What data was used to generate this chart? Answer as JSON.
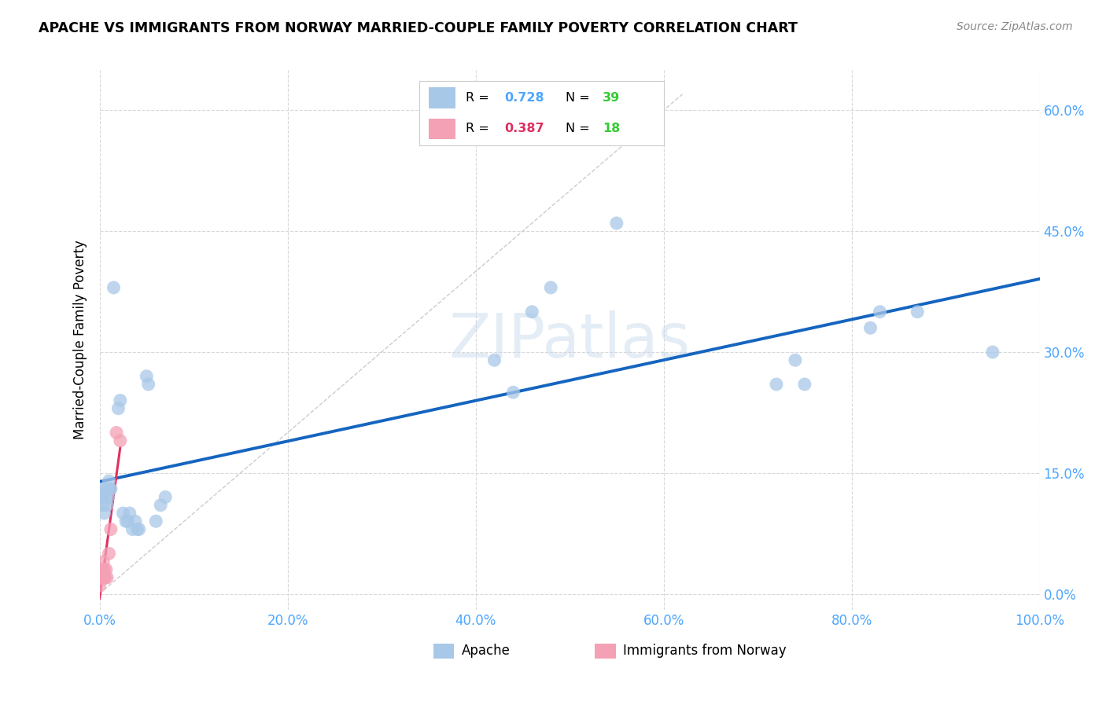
{
  "title": "APACHE VS IMMIGRANTS FROM NORWAY MARRIED-COUPLE FAMILY POVERTY CORRELATION CHART",
  "source": "Source: ZipAtlas.com",
  "ylabel": "Married-Couple Family Poverty",
  "watermark": "ZIPatlas",
  "apache": {
    "R": 0.728,
    "N": 39,
    "color": "#a8c8e8",
    "line_color": "#1565c0",
    "x": [
      0.002,
      0.003,
      0.004,
      0.005,
      0.006,
      0.007,
      0.008,
      0.009,
      0.01,
      0.011,
      0.012,
      0.015,
      0.02,
      0.022,
      0.025,
      0.028,
      0.03,
      0.032,
      0.035,
      0.038,
      0.04,
      0.042,
      0.05,
      0.052,
      0.06,
      0.065,
      0.07,
      0.42,
      0.44,
      0.46,
      0.48,
      0.55,
      0.72,
      0.74,
      0.75,
      0.82,
      0.83,
      0.87,
      0.95
    ],
    "y": [
      0.12,
      0.13,
      0.11,
      0.1,
      0.12,
      0.13,
      0.11,
      0.12,
      0.14,
      0.13,
      0.13,
      0.38,
      0.23,
      0.24,
      0.1,
      0.09,
      0.09,
      0.1,
      0.08,
      0.09,
      0.08,
      0.08,
      0.27,
      0.26,
      0.09,
      0.11,
      0.12,
      0.29,
      0.25,
      0.35,
      0.38,
      0.46,
      0.26,
      0.29,
      0.26,
      0.33,
      0.35,
      0.35,
      0.3
    ]
  },
  "norway": {
    "R": 0.387,
    "N": 18,
    "color": "#f4a0b5",
    "line_color": "#e03060",
    "x": [
      0.0,
      0.001,
      0.001,
      0.002,
      0.002,
      0.003,
      0.003,
      0.004,
      0.004,
      0.005,
      0.005,
      0.006,
      0.007,
      0.008,
      0.01,
      0.012,
      0.018,
      0.022
    ],
    "y": [
      0.01,
      0.02,
      0.03,
      0.02,
      0.03,
      0.02,
      0.03,
      0.02,
      0.04,
      0.02,
      0.03,
      0.02,
      0.03,
      0.02,
      0.05,
      0.08,
      0.2,
      0.19
    ]
  },
  "xlim": [
    0.0,
    1.0
  ],
  "ylim": [
    -0.02,
    0.65
  ],
  "xticks": [
    0.0,
    0.2,
    0.4,
    0.6,
    0.8,
    1.0
  ],
  "yticks": [
    0.0,
    0.15,
    0.3,
    0.45,
    0.6
  ],
  "ytick_labels_right": [
    "0.0%",
    "15.0%",
    "30.0%",
    "45.0%",
    "60.0%"
  ],
  "xtick_labels": [
    "0.0%",
    "20.0%",
    "40.0%",
    "60.0%",
    "80.0%",
    "100.0%"
  ],
  "tick_color": "#4da6ff",
  "background_color": "#ffffff",
  "grid_color": "#d8d8d8",
  "legend_R_color": "#4da6ff",
  "legend_N_color": "#33cc33",
  "diag_color": "#cccccc"
}
